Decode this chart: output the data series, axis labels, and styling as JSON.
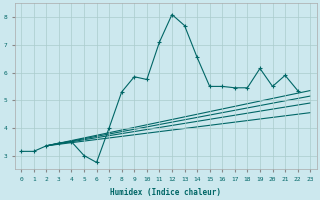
{
  "xlabel": "Humidex (Indice chaleur)",
  "background_color": "#cce8ee",
  "grid_color": "#aacccc",
  "line_color": "#006666",
  "xlim": [
    -0.5,
    23.5
  ],
  "ylim": [
    2.5,
    8.5
  ],
  "xticks": [
    0,
    1,
    2,
    3,
    4,
    5,
    6,
    7,
    8,
    9,
    10,
    11,
    12,
    13,
    14,
    15,
    16,
    17,
    18,
    19,
    20,
    21,
    22,
    23
  ],
  "yticks": [
    3,
    4,
    5,
    6,
    7,
    8
  ],
  "main_series": {
    "x": [
      0,
      1,
      2,
      3,
      4,
      5,
      6,
      7,
      8,
      9,
      10,
      11,
      12,
      13,
      14,
      15,
      16,
      17,
      18,
      19,
      20,
      21,
      22
    ],
    "y": [
      3.15,
      3.15,
      3.35,
      3.45,
      3.5,
      3.0,
      2.75,
      4.0,
      5.3,
      5.85,
      5.75,
      7.1,
      8.1,
      7.7,
      6.55,
      5.5,
      5.5,
      5.45,
      5.45,
      6.15,
      5.5,
      5.9,
      5.35
    ]
  },
  "regression_lines": [
    {
      "x": [
        2,
        23
      ],
      "y": [
        3.35,
        5.35
      ]
    },
    {
      "x": [
        2,
        23
      ],
      "y": [
        3.35,
        5.15
      ]
    },
    {
      "x": [
        2,
        23
      ],
      "y": [
        3.35,
        4.9
      ]
    },
    {
      "x": [
        2,
        23
      ],
      "y": [
        3.35,
        4.55
      ]
    }
  ]
}
